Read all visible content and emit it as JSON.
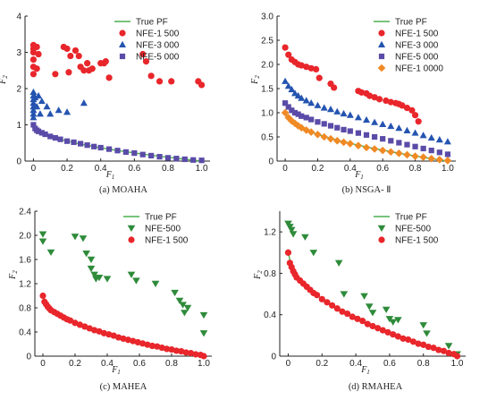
{
  "chart_data": [
    {
      "type": "scatter",
      "caption": "(a) MOAHA",
      "xlabel": "F1",
      "ylabel": "F2",
      "xlim": [
        -0.05,
        1.05
      ],
      "ylim": [
        0,
        4
      ],
      "xticks": [
        0,
        0.2,
        0.4,
        0.6,
        0.8,
        1.0
      ],
      "xtick_labels": [
        "0",
        "0.2",
        "0.4",
        "0.6",
        "0.8",
        "1.0"
      ],
      "yticks": [
        0,
        1,
        2,
        3,
        4
      ],
      "ytick_labels": [
        "0",
        "1",
        "2",
        "3",
        "4"
      ],
      "legend_position": "top-right",
      "series": [
        {
          "name": "True PF",
          "kind": "line",
          "color": "#4caf50",
          "values": "pf"
        },
        {
          "name": "NFE-1 500",
          "marker": "circle",
          "color": "#e8262b",
          "x": [
            0,
            0,
            0,
            0,
            0,
            0,
            0.02,
            0.02,
            0.03,
            0.13,
            0.18,
            0.2,
            0.21,
            0.22,
            0.25,
            0.27,
            0.28,
            0.3,
            0.32,
            0.33,
            0.35,
            0.4,
            0.42,
            0.43,
            0.45,
            0.65,
            0.67,
            0.7,
            0.75,
            0.82,
            0.98,
            1.0
          ],
          "y": [
            3.2,
            3.1,
            3.0,
            2.8,
            2.6,
            2.4,
            2.55,
            3.15,
            2.95,
            2.4,
            3.15,
            3.1,
            2.45,
            2.9,
            3.05,
            2.9,
            2.6,
            2.5,
            2.7,
            2.5,
            2.55,
            2.7,
            2.7,
            2.75,
            2.3,
            2.95,
            2.75,
            2.35,
            2.2,
            2.2,
            2.2,
            2.1
          ]
        },
        {
          "name": "NFE-3 000",
          "marker": "triangle",
          "color": "#2454b0",
          "x": [
            0,
            0,
            0,
            0,
            0,
            0,
            0,
            0,
            0.01,
            0.02,
            0.03,
            0.04,
            0.05,
            0.08,
            0.1,
            0.15,
            0.2,
            0.3
          ],
          "y": [
            1.9,
            1.8,
            1.7,
            1.6,
            1.5,
            1.4,
            1.3,
            1.2,
            1.75,
            1.5,
            1.8,
            1.3,
            1.65,
            1.5,
            1.3,
            1.4,
            1.35,
            1.6
          ]
        },
        {
          "name": "NFE-5 000",
          "marker": "square",
          "color": "#5a4ba8",
          "x": [
            0,
            0.01,
            0.02,
            0.03,
            0.05,
            0.07,
            0.1,
            0.13,
            0.16,
            0.2,
            0.24,
            0.28,
            0.32,
            0.36,
            0.4,
            0.45,
            0.5,
            0.55,
            0.6,
            0.65,
            0.7,
            0.75,
            0.8,
            0.85,
            0.9,
            0.95,
            1.0
          ],
          "y": [
            1.0,
            0.9,
            0.85,
            0.82,
            0.78,
            0.74,
            0.68,
            0.64,
            0.6,
            0.55,
            0.52,
            0.48,
            0.44,
            0.4,
            0.37,
            0.33,
            0.29,
            0.25,
            0.22,
            0.18,
            0.15,
            0.12,
            0.09,
            0.07,
            0.05,
            0.03,
            0.02
          ]
        }
      ]
    },
    {
      "type": "scatter",
      "caption": "(b) NSGA- Ⅱ",
      "xlabel": "F1",
      "ylabel": "F2",
      "xlim": [
        -0.05,
        1.05
      ],
      "ylim": [
        0,
        3.0
      ],
      "xticks": [
        0,
        0.2,
        0.4,
        0.6,
        0.8,
        1.0
      ],
      "xtick_labels": [
        "0",
        "0.2",
        "0.4",
        "0.6",
        "0.8",
        "1.0"
      ],
      "yticks": [
        0,
        0.5,
        1.0,
        1.5,
        2.0,
        2.5,
        3.0
      ],
      "ytick_labels": [
        "0",
        "0.5",
        "1.0",
        "1.5",
        "2.0",
        "2.5",
        "3.0"
      ],
      "legend_position": "top-right",
      "series": [
        {
          "name": "True PF",
          "kind": "line",
          "color": "#4caf50",
          "values": "pf"
        },
        {
          "name": "NFE-1 500",
          "marker": "circle",
          "color": "#e8262b",
          "x": [
            0.0,
            0.02,
            0.04,
            0.06,
            0.08,
            0.1,
            0.13,
            0.16,
            0.19,
            0.21,
            0.28,
            0.3,
            0.45,
            0.47,
            0.5,
            0.52,
            0.55,
            0.58,
            0.62,
            0.65,
            0.68,
            0.7,
            0.72,
            0.75,
            0.78,
            0.8,
            0.82
          ],
          "y": [
            2.35,
            2.2,
            2.1,
            2.05,
            2.0,
            1.98,
            1.95,
            1.92,
            1.9,
            1.72,
            1.6,
            1.52,
            1.45,
            1.42,
            1.4,
            1.35,
            1.32,
            1.28,
            1.25,
            1.22,
            1.2,
            1.18,
            1.15,
            1.1,
            1.05,
            0.95,
            0.82
          ]
        },
        {
          "name": "NFE-3 000",
          "marker": "triangle",
          "color": "#2454b0",
          "x": [
            0.0,
            0.02,
            0.04,
            0.06,
            0.08,
            0.1,
            0.13,
            0.16,
            0.2,
            0.24,
            0.28,
            0.32,
            0.36,
            0.4,
            0.45,
            0.5,
            0.55,
            0.6,
            0.65,
            0.7,
            0.75,
            0.8,
            0.85,
            0.9,
            0.95,
            1.0
          ],
          "y": [
            1.65,
            1.55,
            1.48,
            1.4,
            1.35,
            1.3,
            1.25,
            1.2,
            1.15,
            1.1,
            1.07,
            1.02,
            0.98,
            0.95,
            0.9,
            0.85,
            0.8,
            0.76,
            0.72,
            0.68,
            0.63,
            0.58,
            0.53,
            0.48,
            0.44,
            0.4
          ]
        },
        {
          "name": "NFE-5 000",
          "marker": "square",
          "color": "#5a4ba8",
          "x": [
            0.0,
            0.02,
            0.04,
            0.06,
            0.08,
            0.1,
            0.13,
            0.16,
            0.2,
            0.24,
            0.28,
            0.32,
            0.36,
            0.4,
            0.45,
            0.5,
            0.55,
            0.6,
            0.65,
            0.7,
            0.75,
            0.8,
            0.85,
            0.9,
            0.95,
            1.0
          ],
          "y": [
            1.2,
            1.12,
            1.05,
            1.0,
            0.97,
            0.93,
            0.9,
            0.86,
            0.81,
            0.77,
            0.73,
            0.69,
            0.65,
            0.62,
            0.58,
            0.54,
            0.5,
            0.46,
            0.42,
            0.38,
            0.34,
            0.3,
            0.26,
            0.22,
            0.18,
            0.14
          ]
        },
        {
          "name": "NFE-1 0000",
          "marker": "diamond",
          "color": "#f08a24",
          "x": [
            0.0,
            0.02,
            0.04,
            0.06,
            0.08,
            0.1,
            0.13,
            0.16,
            0.2,
            0.24,
            0.28,
            0.32,
            0.36,
            0.4,
            0.45,
            0.5,
            0.55,
            0.6,
            0.65,
            0.7,
            0.75,
            0.8,
            0.85,
            0.9,
            0.95,
            1.0
          ],
          "y": [
            1.0,
            0.9,
            0.83,
            0.78,
            0.73,
            0.69,
            0.64,
            0.6,
            0.55,
            0.5,
            0.46,
            0.42,
            0.39,
            0.36,
            0.32,
            0.28,
            0.25,
            0.22,
            0.19,
            0.16,
            0.13,
            0.1,
            0.08,
            0.05,
            0.03,
            0.01
          ]
        }
      ]
    },
    {
      "type": "scatter",
      "caption": "(c) MAHEA",
      "xlabel": "F1",
      "ylabel": "F2",
      "xlim": [
        -0.05,
        1.05
      ],
      "ylim": [
        0,
        2.4
      ],
      "xticks": [
        0,
        0.2,
        0.4,
        0.6,
        0.8,
        1.0
      ],
      "xtick_labels": [
        "0",
        "0.2",
        "0.4",
        "0.6",
        "0.8",
        "1.0"
      ],
      "yticks": [
        0,
        0.4,
        0.8,
        1.2,
        1.6,
        2.0,
        2.4
      ],
      "ytick_labels": [
        "0",
        "0.4",
        "0.8",
        "1.2",
        "1.6",
        "2.0",
        "2.4"
      ],
      "legend_position": "top-right",
      "series": [
        {
          "name": "True PF",
          "kind": "line",
          "color": "#4caf50",
          "values": "pf"
        },
        {
          "name": "NFE-500",
          "marker": "triangle-down",
          "color": "#2e8b3a",
          "x": [
            0.0,
            0.0,
            0.05,
            0.2,
            0.25,
            0.27,
            0.3,
            0.3,
            0.32,
            0.33,
            0.35,
            0.4,
            0.55,
            0.58,
            0.7,
            0.82,
            0.85,
            0.87,
            0.88,
            0.9,
            1.0,
            1.0
          ],
          "y": [
            2.02,
            1.9,
            1.72,
            1.98,
            1.95,
            1.7,
            1.6,
            1.45,
            1.35,
            1.28,
            1.3,
            1.28,
            1.35,
            1.25,
            1.2,
            1.05,
            0.92,
            0.85,
            0.72,
            0.8,
            0.68,
            0.38
          ]
        },
        {
          "name": "NFE-1 500",
          "marker": "circle",
          "color": "#e8262b",
          "x": [
            0.0,
            0.01,
            0.02,
            0.03,
            0.04,
            0.05,
            0.07,
            0.09,
            0.11,
            0.13,
            0.15,
            0.17,
            0.2,
            0.23,
            0.26,
            0.29,
            0.32,
            0.35,
            0.38,
            0.41,
            0.44,
            0.47,
            0.5,
            0.53,
            0.56,
            0.59,
            0.62,
            0.65,
            0.68,
            0.71,
            0.74,
            0.77,
            0.8,
            0.83,
            0.86,
            0.89,
            0.92,
            0.95,
            0.98,
            1.0
          ],
          "y": [
            1.0,
            0.9,
            0.86,
            0.82,
            0.79,
            0.76,
            0.73,
            0.7,
            0.67,
            0.64,
            0.61,
            0.59,
            0.55,
            0.52,
            0.49,
            0.46,
            0.43,
            0.41,
            0.38,
            0.36,
            0.34,
            0.31,
            0.29,
            0.27,
            0.25,
            0.23,
            0.21,
            0.19,
            0.17,
            0.16,
            0.14,
            0.12,
            0.11,
            0.09,
            0.08,
            0.06,
            0.05,
            0.03,
            0.02,
            0.0
          ]
        }
      ]
    },
    {
      "type": "scatter",
      "caption": "(d) RMAHEA",
      "xlabel": "F1",
      "ylabel": "F2",
      "xlim": [
        -0.05,
        1.05
      ],
      "ylim": [
        0,
        1.4
      ],
      "xticks": [
        0,
        0.2,
        0.4,
        0.6,
        0.8,
        1.0
      ],
      "xtick_labels": [
        "0",
        "0.2",
        "0.4",
        "0.6",
        "0.8",
        "1.0"
      ],
      "yticks": [
        0,
        0.4,
        0.8,
        1.2
      ],
      "ytick_labels": [
        "0",
        "0.4",
        "0.8",
        "1.2"
      ],
      "legend_position": "top-right",
      "series": [
        {
          "name": "True PF",
          "kind": "line",
          "color": "#4caf50",
          "values": "pf"
        },
        {
          "name": "NFE-500",
          "marker": "triangle-down",
          "color": "#2e8b3a",
          "x": [
            0.0,
            0.01,
            0.02,
            0.03,
            0.1,
            0.15,
            0.3,
            0.33,
            0.45,
            0.48,
            0.5,
            0.58,
            0.6,
            0.62,
            0.65,
            0.8,
            0.82,
            0.95,
            1.0
          ],
          "y": [
            1.28,
            1.25,
            1.22,
            1.18,
            1.15,
            1.0,
            0.9,
            0.6,
            0.58,
            0.48,
            0.42,
            0.45,
            0.36,
            0.33,
            0.35,
            0.3,
            0.22,
            0.1,
            0.02
          ]
        },
        {
          "name": "NFE-1 500",
          "marker": "circle",
          "color": "#e8262b",
          "x": [
            0.0,
            0.01,
            0.02,
            0.03,
            0.04,
            0.05,
            0.07,
            0.09,
            0.11,
            0.13,
            0.15,
            0.17,
            0.2,
            0.23,
            0.26,
            0.29,
            0.32,
            0.35,
            0.38,
            0.41,
            0.44,
            0.47,
            0.5,
            0.53,
            0.56,
            0.59,
            0.62,
            0.65,
            0.68,
            0.71,
            0.74,
            0.77,
            0.8,
            0.83,
            0.86,
            0.89,
            0.92,
            0.95,
            0.98,
            1.0
          ],
          "y": [
            1.0,
            0.9,
            0.86,
            0.82,
            0.79,
            0.76,
            0.73,
            0.7,
            0.67,
            0.64,
            0.61,
            0.59,
            0.55,
            0.52,
            0.49,
            0.46,
            0.43,
            0.41,
            0.38,
            0.36,
            0.34,
            0.31,
            0.29,
            0.27,
            0.25,
            0.23,
            0.21,
            0.19,
            0.17,
            0.16,
            0.14,
            0.12,
            0.11,
            0.09,
            0.08,
            0.06,
            0.05,
            0.03,
            0.02,
            0.0
          ]
        }
      ]
    }
  ]
}
